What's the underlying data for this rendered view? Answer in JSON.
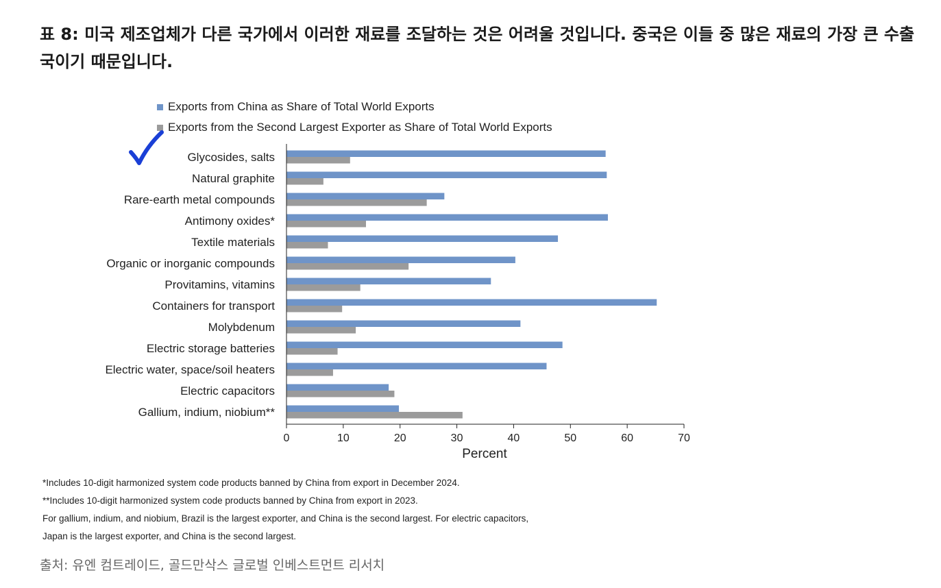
{
  "title": "표 8: 미국 제조업체가 다른 국가에서 이러한 재료를 조달하는 것은 어려울 것입니다. 중국은 이들 중 많은 재료의 가장 큰 수출국이기 때문입니다.",
  "chart_data": {
    "type": "bar",
    "orientation": "horizontal",
    "categories": [
      "Glycosides, salts",
      "Natural graphite",
      "Rare-earth metal compounds",
      "Antimony oxides*",
      "Textile materials",
      "Organic or inorganic compounds",
      "Provitamins, vitamins",
      "Containers for transport",
      "Molybdenum",
      "Electric storage batteries",
      "Electric water, space/soil heaters",
      "Electric capacitors",
      "Gallium, indium, niobium**"
    ],
    "series": [
      {
        "name": "Exports from China as Share of Total World Exports",
        "color": "#6f94c8",
        "values": [
          56.2,
          56.4,
          27.8,
          56.6,
          47.8,
          40.3,
          36.0,
          65.2,
          41.2,
          48.6,
          45.8,
          18.0,
          19.8
        ]
      },
      {
        "name": "Exports from the Second Largest Exporter as Share of Total World Exports",
        "color": "#9b9b9b",
        "values": [
          11.2,
          6.5,
          24.7,
          14.0,
          7.3,
          21.5,
          13.0,
          9.8,
          12.2,
          9.0,
          8.2,
          19.0,
          31.0
        ]
      }
    ],
    "xlabel": "Percent",
    "xlim": [
      0,
      70
    ],
    "xticks": [
      0,
      10,
      20,
      30,
      40,
      50,
      60,
      70
    ],
    "legend_position": "top"
  },
  "notes": [
    "*Includes 10-digit harmonized system code products banned by China from export in December 2024.",
    "**Includes 10-digit harmonized system code products banned by China from export in 2023.",
    "For gallium, indium, and niobium, Brazil is the largest exporter, and China is the second largest. For electric capacitors,",
    "Japan is the largest exporter, and China is the second largest."
  ],
  "source": "출처: 유엔 컴트레이드, 골드만삭스 글로벌 인베스트먼트 리서치",
  "annotation": {
    "checkmark_color": "#1a3fd6",
    "icon": "checkmark-icon"
  }
}
